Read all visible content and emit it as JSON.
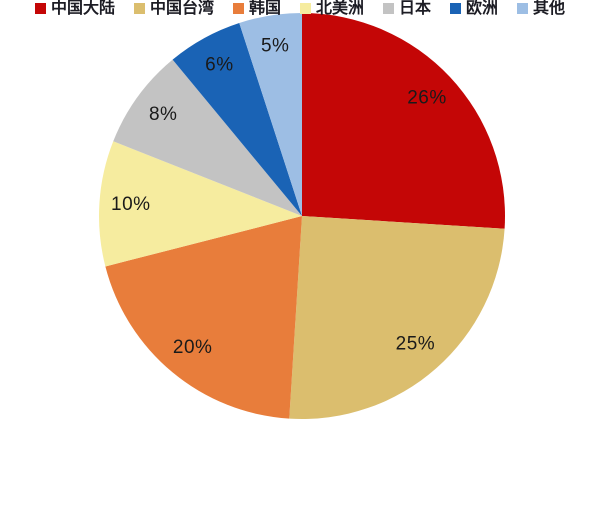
{
  "chart_data": {
    "type": "pie",
    "title": "",
    "labels": [
      "中国大陆",
      "中国台湾",
      "韩国",
      "北美洲",
      "日本",
      "欧洲",
      "其他"
    ],
    "values": [
      26,
      25,
      20,
      10,
      8,
      6,
      5
    ],
    "data_labels": [
      "26%",
      "25%",
      "20%",
      "10%",
      "8%",
      "6%",
      "5%"
    ],
    "colors": [
      "#c40606",
      "#dbbe6e",
      "#e87d3b",
      "#f6ec9f",
      "#c3c3c3",
      "#1a63b5",
      "#9dbee4"
    ],
    "start_angle_deg": 0,
    "direction": "clockwise",
    "legend_position": "bottom",
    "label_color": "#1a1a1a",
    "background_color": "#ffffff"
  }
}
